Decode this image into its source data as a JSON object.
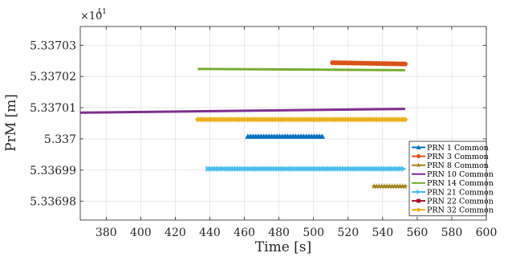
{
  "chart_data": {
    "type": "line",
    "xlabel": "Time [s]",
    "ylabel": "PrM [m]",
    "y_exponent_label": "×10",
    "y_exponent_power": "11",
    "xlim": [
      365,
      600
    ],
    "ylim": [
      5.336974,
      5.337036
    ],
    "grid": true,
    "legend_position": "bottom-right",
    "x_ticks": [
      380,
      400,
      420,
      440,
      460,
      480,
      500,
      520,
      540,
      560,
      580,
      600
    ],
    "x_tick_labels": [
      "380",
      "400",
      "420",
      "440",
      "460",
      "480",
      "500",
      "520",
      "540",
      "560",
      "580",
      "600"
    ],
    "y_ticks": [
      5.33698,
      5.33699,
      5.337,
      5.33701,
      5.33702,
      5.33703
    ],
    "y_tick_labels": [
      "5.33698",
      "5.33699",
      "5.337",
      "5.33701",
      "5.33702",
      "5.33703"
    ],
    "series": [
      {
        "name": "PRN 1 Common",
        "color": "#0072BD",
        "marker": "triangle-up",
        "x": [
          462,
          505
        ],
        "y": [
          5.3370008,
          5.3370008
        ]
      },
      {
        "name": "PRN 3 Common",
        "color": "#D95319",
        "marker": "circle",
        "x": [
          511,
          553
        ],
        "y": [
          5.3370244,
          5.337024
        ]
      },
      {
        "name": "PRN 8 Common",
        "color": "#A2841F",
        "marker": "star",
        "x": [
          535,
          553
        ],
        "y": [
          5.3369848,
          5.3369848
        ]
      },
      {
        "name": "PRN 10 Common",
        "color": "#7E2F8E",
        "marker": "none",
        "x": [
          365,
          553
        ],
        "y": [
          5.3370084,
          5.3370096
        ]
      },
      {
        "name": "PRN 14 Common",
        "color": "#77AC30",
        "marker": "none",
        "x": [
          433,
          553
        ],
        "y": [
          5.3370224,
          5.337022
        ]
      },
      {
        "name": "PRN 21 Common",
        "color": "#4DBEEE",
        "marker": "triangle-right",
        "x": [
          439,
          552
        ],
        "y": [
          5.3369904,
          5.3369904
        ]
      },
      {
        "name": "PRN 22 Common",
        "color": "#A2142F",
        "marker": "square",
        "x": [],
        "y": []
      },
      {
        "name": "PRN 32 Common",
        "color": "#EDB120",
        "marker": "diamond",
        "x": [
          433,
          553
        ],
        "y": [
          5.3370062,
          5.3370062
        ]
      }
    ]
  }
}
